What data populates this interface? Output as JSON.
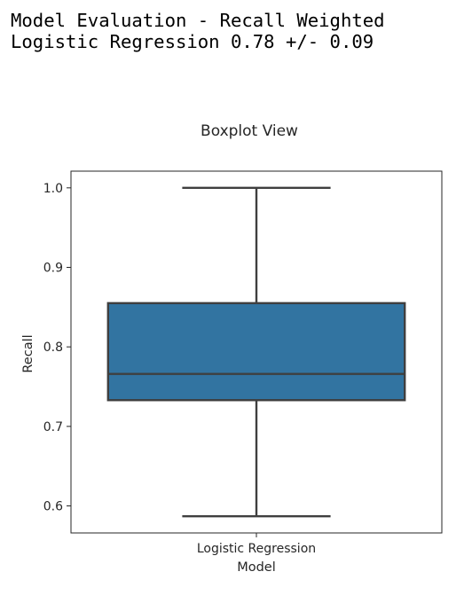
{
  "output": {
    "lines": [
      "Model Evaluation - Recall Weighted",
      "Logistic Regression 0.78 +/- 0.09"
    ]
  },
  "chart_data": {
    "type": "boxplot",
    "title": "Boxplot View",
    "xlabel": "Model",
    "ylabel": "Recall",
    "categories": [
      "Logistic Regression"
    ],
    "boxes": [
      {
        "category": "Logistic Regression",
        "whisker_low": 0.587,
        "q1": 0.733,
        "median": 0.766,
        "q3": 0.855,
        "whisker_high": 1.0
      }
    ],
    "ylim": [
      0.566,
      1.021
    ],
    "yticks": [
      0.6,
      0.7,
      0.8,
      0.9,
      1.0
    ],
    "ytick_labels": [
      "0.6",
      "0.7",
      "0.8",
      "0.9",
      "1.0"
    ],
    "grid": false,
    "colors": {
      "box_fill": "#3274a1",
      "lines": "#3f3f3f"
    }
  }
}
